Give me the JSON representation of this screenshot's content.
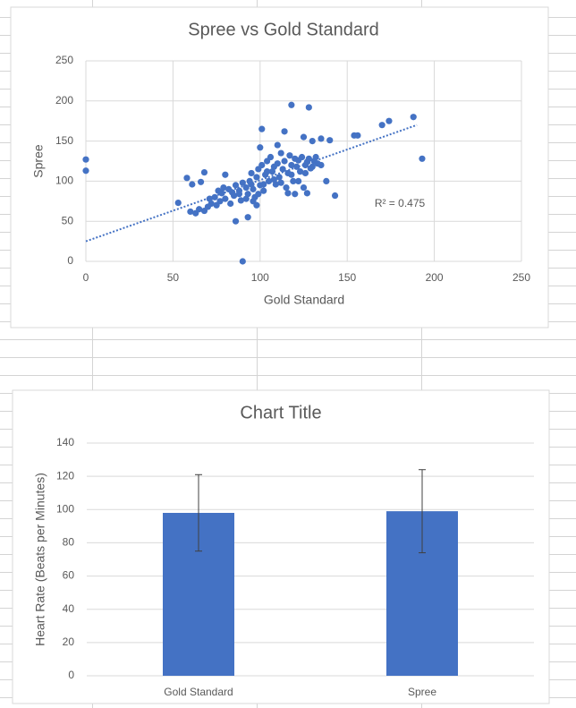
{
  "chart_data": [
    {
      "type": "scatter",
      "title": "Spree vs Gold Standard",
      "x_label": "Gold Standard",
      "y_label": "Spree",
      "x": [
        0,
        0,
        90,
        193,
        188,
        174,
        170,
        156,
        154,
        118,
        128,
        101,
        114,
        125,
        135,
        140,
        138,
        143,
        86,
        93,
        53,
        58,
        61,
        66,
        68,
        80,
        100,
        110,
        130,
        120,
        132,
        116,
        120,
        127,
        115,
        125,
        60,
        63,
        65,
        68,
        70,
        72,
        74,
        75,
        77,
        78,
        80,
        82,
        83,
        85,
        86,
        88,
        89,
        90,
        92,
        93,
        94,
        95,
        96,
        97,
        98,
        99,
        100,
        101,
        102,
        103,
        104,
        105,
        106,
        107,
        108,
        109,
        110,
        111,
        112,
        113,
        114,
        116,
        117,
        118,
        119,
        121,
        122,
        123,
        124,
        126,
        127,
        128,
        129,
        131,
        133,
        135,
        98,
        96,
        92,
        88,
        84,
        79,
        76,
        71,
        102,
        108,
        95,
        99,
        104,
        112,
        118,
        122,
        126,
        130
      ],
      "y": [
        127,
        113,
        0,
        128,
        180,
        175,
        170,
        157,
        157,
        195,
        192,
        165,
        162,
        155,
        153,
        151,
        100,
        82,
        50,
        55,
        73,
        104,
        96,
        99,
        111,
        108,
        142,
        145,
        150,
        128,
        130,
        85,
        84,
        85,
        92,
        92,
        62,
        60,
        65,
        63,
        68,
        72,
        80,
        70,
        75,
        85,
        78,
        90,
        72,
        82,
        95,
        88,
        76,
        98,
        92,
        84,
        100,
        110,
        90,
        80,
        105,
        115,
        95,
        120,
        88,
        108,
        125,
        100,
        130,
        112,
        118,
        96,
        122,
        105,
        135,
        115,
        125,
        110,
        132,
        120,
        100,
        118,
        126,
        112,
        130,
        120,
        124,
        128,
        116,
        125,
        122,
        120,
        70,
        75,
        78,
        84,
        86,
        92,
        88,
        78,
        96,
        102,
        96,
        84,
        112,
        98,
        108,
        100,
        110,
        118
      ],
      "color": "#4472c4",
      "trendline": {
        "x": [
          0,
          190
        ],
        "y": [
          25,
          170
        ],
        "label": "R² = 0.475"
      },
      "xlim": [
        0,
        250
      ],
      "xticks": [
        0,
        50,
        100,
        150,
        200,
        250
      ],
      "ylim": [
        0,
        250
      ],
      "yticks": [
        0,
        50,
        100,
        150,
        200,
        250
      ],
      "grid": true
    },
    {
      "type": "bar",
      "title": "Chart Title",
      "y_label": "Heart Rate (Beats per Minutes)",
      "categories": [
        "Gold Standard",
        "Spree"
      ],
      "values": [
        98,
        99
      ],
      "errors": [
        23,
        25
      ],
      "color": "#4472c4",
      "ylim": [
        0,
        140
      ],
      "yticks": [
        0,
        20,
        40,
        60,
        80,
        100,
        120,
        140
      ],
      "grid": true
    }
  ]
}
